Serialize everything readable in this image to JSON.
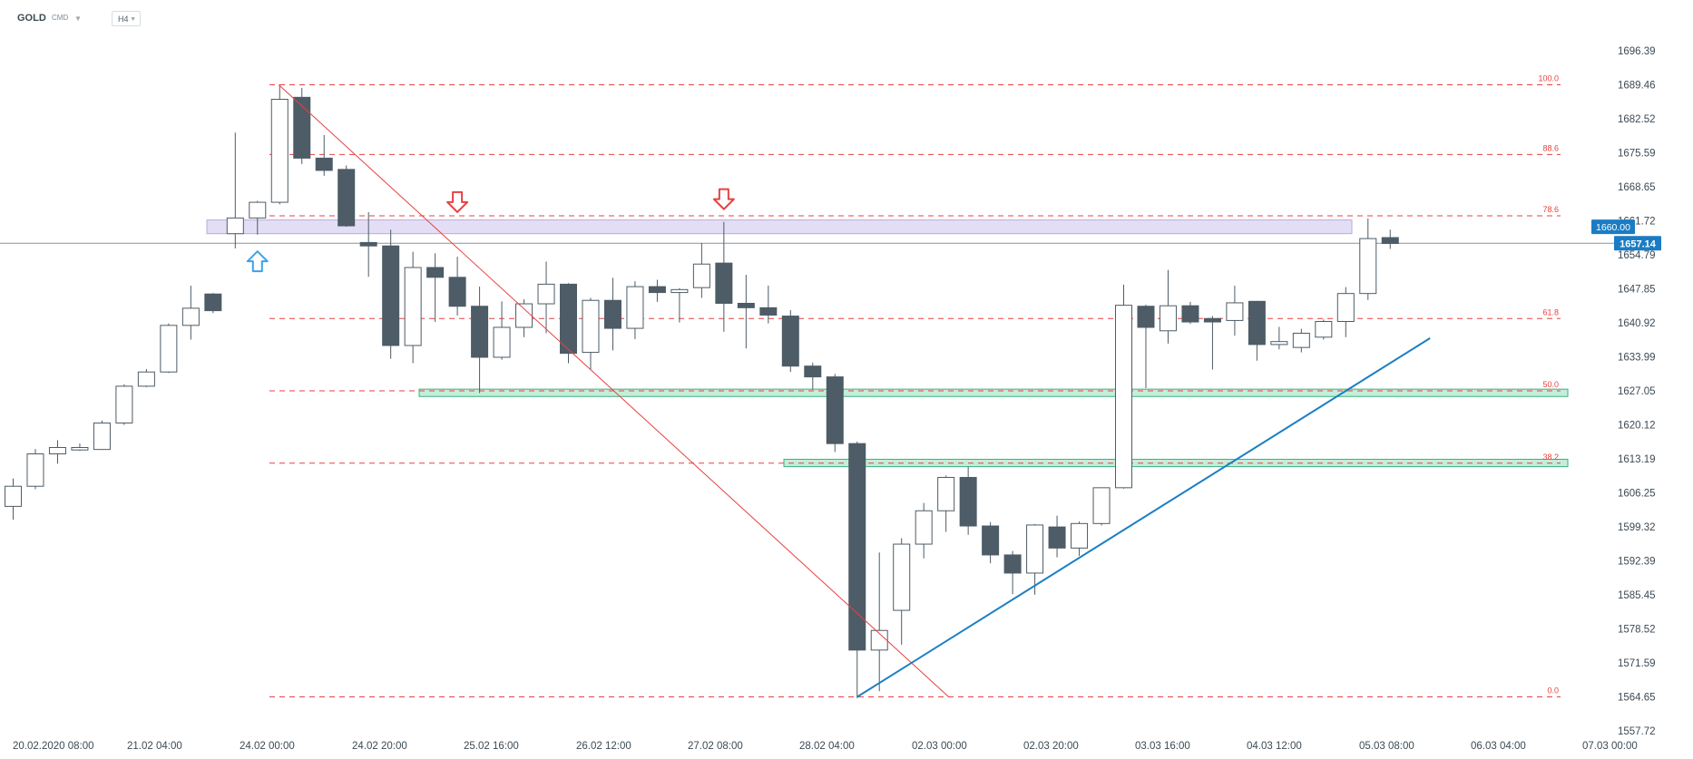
{
  "toolbar": {
    "symbol": "GOLD",
    "source": "CMD",
    "source_caret": "▼",
    "timeframe": "H4",
    "timeframe_caret": "▼"
  },
  "colors": {
    "bull_body": "#ffffff",
    "bear_body": "#4d5c66",
    "wick": "#4d5c66",
    "fib_line": "#e84141",
    "trend_line": "#1a7fc4",
    "resistance_zone": "#d9d1f2",
    "support_zone": "#b7ebd3",
    "price_tag": "#1b7cc4",
    "arrow_up": "#3aa3e8",
    "arrow_down": "#e84141"
  },
  "chart_data": {
    "type": "candlestick",
    "instrument": "GOLD",
    "timeframe": "H4",
    "y_axis": {
      "ticks": [
        1696.39,
        1689.46,
        1682.52,
        1675.59,
        1668.65,
        1661.72,
        1654.79,
        1647.85,
        1640.92,
        1633.99,
        1627.05,
        1620.12,
        1613.19,
        1606.25,
        1599.32,
        1592.39,
        1585.45,
        1578.52,
        1571.59,
        1564.65,
        1557.72
      ],
      "range": [
        1557.72,
        1696.39
      ]
    },
    "x_axis": {
      "ticks": [
        "20.02.2020  08:00",
        "21.02  04:00",
        "24.02  00:00",
        "24.02  20:00",
        "25.02  16:00",
        "26.02  12:00",
        "27.02  08:00",
        "28.02  04:00",
        "02.03  00:00",
        "02.03  20:00",
        "03.03  16:00",
        "04.03  12:00",
        "05.03  08:00",
        "06.03  04:00",
        "07.03  00:00"
      ]
    },
    "candles": [
      {
        "o": 1603.5,
        "h": 1609.2,
        "l": 1600.8,
        "c": 1607.6
      },
      {
        "o": 1607.6,
        "h": 1615.2,
        "l": 1607.0,
        "c": 1614.2
      },
      {
        "o": 1614.2,
        "h": 1617.0,
        "l": 1612.2,
        "c": 1615.5
      },
      {
        "o": 1615.0,
        "h": 1616.3,
        "l": 1614.8,
        "c": 1615.5
      },
      {
        "o": 1615.1,
        "h": 1621.0,
        "l": 1615.0,
        "c": 1620.5
      },
      {
        "o": 1620.5,
        "h": 1628.4,
        "l": 1620.1,
        "c": 1628.0
      },
      {
        "o": 1628.0,
        "h": 1631.5,
        "l": 1627.8,
        "c": 1630.9
      },
      {
        "o": 1630.9,
        "h": 1640.8,
        "l": 1630.7,
        "c": 1640.4
      },
      {
        "o": 1640.4,
        "h": 1648.5,
        "l": 1637.5,
        "c": 1643.9
      },
      {
        "o": 1646.8,
        "h": 1647.0,
        "l": 1642.9,
        "c": 1643.4
      },
      {
        "o": 1659.1,
        "h": 1679.7,
        "l": 1656.1,
        "c": 1662.3
      },
      {
        "o": 1662.3,
        "h": 1665.8,
        "l": 1658.9,
        "c": 1665.5
      },
      {
        "o": 1665.5,
        "h": 1689.3,
        "l": 1665.1,
        "c": 1686.5
      },
      {
        "o": 1686.9,
        "h": 1688.8,
        "l": 1673.3,
        "c": 1674.5
      },
      {
        "o": 1674.5,
        "h": 1679.2,
        "l": 1670.9,
        "c": 1672.0
      },
      {
        "o": 1672.2,
        "h": 1673.0,
        "l": 1660.5,
        "c": 1660.7
      },
      {
        "o": 1657.3,
        "h": 1663.5,
        "l": 1650.3,
        "c": 1656.6
      },
      {
        "o": 1656.6,
        "h": 1659.9,
        "l": 1633.6,
        "c": 1636.3
      },
      {
        "o": 1636.3,
        "h": 1655.4,
        "l": 1632.7,
        "c": 1652.2
      },
      {
        "o": 1652.2,
        "h": 1655.1,
        "l": 1641.1,
        "c": 1650.2
      },
      {
        "o": 1650.2,
        "h": 1654.4,
        "l": 1642.4,
        "c": 1644.3
      },
      {
        "o": 1644.3,
        "h": 1648.3,
        "l": 1626.6,
        "c": 1633.9
      },
      {
        "o": 1633.9,
        "h": 1645.3,
        "l": 1633.4,
        "c": 1640.0
      },
      {
        "o": 1640.0,
        "h": 1645.7,
        "l": 1638.0,
        "c": 1644.8
      },
      {
        "o": 1644.8,
        "h": 1653.4,
        "l": 1638.8,
        "c": 1648.8
      },
      {
        "o": 1648.8,
        "h": 1649.0,
        "l": 1632.7,
        "c": 1634.7
      },
      {
        "o": 1634.9,
        "h": 1646.0,
        "l": 1631.4,
        "c": 1645.5
      },
      {
        "o": 1645.5,
        "h": 1650.1,
        "l": 1635.3,
        "c": 1639.8
      },
      {
        "o": 1639.8,
        "h": 1649.4,
        "l": 1637.6,
        "c": 1648.3
      },
      {
        "o": 1648.3,
        "h": 1649.7,
        "l": 1645.2,
        "c": 1647.1
      },
      {
        "o": 1647.1,
        "h": 1648.0,
        "l": 1641.0,
        "c": 1647.7
      },
      {
        "o": 1648.1,
        "h": 1657.2,
        "l": 1646.0,
        "c": 1652.9
      },
      {
        "o": 1653.1,
        "h": 1661.5,
        "l": 1639.1,
        "c": 1644.9
      },
      {
        "o": 1644.9,
        "h": 1650.7,
        "l": 1635.7,
        "c": 1644.0
      },
      {
        "o": 1644.0,
        "h": 1648.5,
        "l": 1640.8,
        "c": 1642.5
      },
      {
        "o": 1642.3,
        "h": 1643.5,
        "l": 1630.9,
        "c": 1632.1
      },
      {
        "o": 1632.1,
        "h": 1632.8,
        "l": 1627.3,
        "c": 1629.9
      },
      {
        "o": 1629.9,
        "h": 1630.5,
        "l": 1614.6,
        "c": 1616.3
      },
      {
        "o": 1616.3,
        "h": 1616.7,
        "l": 1564.4,
        "c": 1574.2
      },
      {
        "o": 1574.2,
        "h": 1594.1,
        "l": 1565.8,
        "c": 1578.2
      },
      {
        "o": 1582.3,
        "h": 1597.0,
        "l": 1575.3,
        "c": 1595.8
      },
      {
        "o": 1595.8,
        "h": 1604.2,
        "l": 1592.9,
        "c": 1602.6
      },
      {
        "o": 1602.6,
        "h": 1609.8,
        "l": 1598.3,
        "c": 1609.4
      },
      {
        "o": 1609.4,
        "h": 1611.6,
        "l": 1597.7,
        "c": 1599.5
      },
      {
        "o": 1599.5,
        "h": 1600.3,
        "l": 1591.9,
        "c": 1593.6
      },
      {
        "o": 1593.6,
        "h": 1594.4,
        "l": 1585.6,
        "c": 1589.9
      },
      {
        "o": 1589.9,
        "h": 1599.9,
        "l": 1585.5,
        "c": 1599.7
      },
      {
        "o": 1599.3,
        "h": 1601.6,
        "l": 1593.1,
        "c": 1595.0
      },
      {
        "o": 1595.0,
        "h": 1600.4,
        "l": 1593.4,
        "c": 1600.0
      },
      {
        "o": 1600.0,
        "h": 1607.3,
        "l": 1599.6,
        "c": 1607.3
      },
      {
        "o": 1607.3,
        "h": 1648.7,
        "l": 1607.1,
        "c": 1644.5
      },
      {
        "o": 1644.3,
        "h": 1644.6,
        "l": 1627.6,
        "c": 1640.0
      },
      {
        "o": 1639.3,
        "h": 1651.7,
        "l": 1636.7,
        "c": 1644.4
      },
      {
        "o": 1644.4,
        "h": 1645.2,
        "l": 1640.7,
        "c": 1641.1
      },
      {
        "o": 1641.8,
        "h": 1642.3,
        "l": 1631.4,
        "c": 1641.1
      },
      {
        "o": 1641.4,
        "h": 1648.5,
        "l": 1638.3,
        "c": 1645.0
      },
      {
        "o": 1645.3,
        "h": 1645.4,
        "l": 1633.2,
        "c": 1636.5
      },
      {
        "o": 1636.5,
        "h": 1640.1,
        "l": 1635.5,
        "c": 1637.1
      },
      {
        "o": 1635.9,
        "h": 1639.7,
        "l": 1634.9,
        "c": 1638.8
      },
      {
        "o": 1638.0,
        "h": 1641.6,
        "l": 1637.5,
        "c": 1641.2
      },
      {
        "o": 1641.2,
        "h": 1648.2,
        "l": 1638.0,
        "c": 1646.9
      },
      {
        "o": 1646.9,
        "h": 1662.2,
        "l": 1645.6,
        "c": 1658.1
      },
      {
        "o": 1658.3,
        "h": 1659.9,
        "l": 1656.0,
        "c": 1657.1
      }
    ],
    "horizontal_line": {
      "value": 1657.14,
      "label": "1657.14"
    },
    "resistance_zone": {
      "from": 1659.1,
      "to": 1661.9,
      "label": "1660.00"
    },
    "support_zones": [
      {
        "from": 1625.9,
        "to": 1627.4
      },
      {
        "from": 1611.6,
        "to": 1613.1
      }
    ],
    "fibonacci": {
      "high": 1689.46,
      "low": 1564.65,
      "levels": [
        {
          "label": "100.0",
          "value": 1689.46
        },
        {
          "label": "88.6",
          "value": 1675.25
        },
        {
          "label": "78.6",
          "value": 1662.73
        },
        {
          "label": "61.8",
          "value": 1641.8
        },
        {
          "label": "50.0",
          "value": 1627.05
        },
        {
          "label": "38.2",
          "value": 1612.3
        },
        {
          "label": "0.0",
          "value": 1564.65
        }
      ]
    },
    "diagonal_from_high": {
      "from_candle": 12,
      "from_value": 1689.46,
      "to_candle": 42,
      "to_value": 1564.65
    },
    "trend_line": {
      "from_candle": 38,
      "from_value": 1564.65,
      "to_candle": 64,
      "to_value": 1637.8
    },
    "signal_arrows": [
      {
        "type": "up",
        "candle": 11,
        "value": 1655.5
      },
      {
        "type": "down",
        "candle": 20,
        "value": 1663.5
      },
      {
        "type": "down",
        "candle": 32,
        "value": 1664.1
      }
    ]
  }
}
